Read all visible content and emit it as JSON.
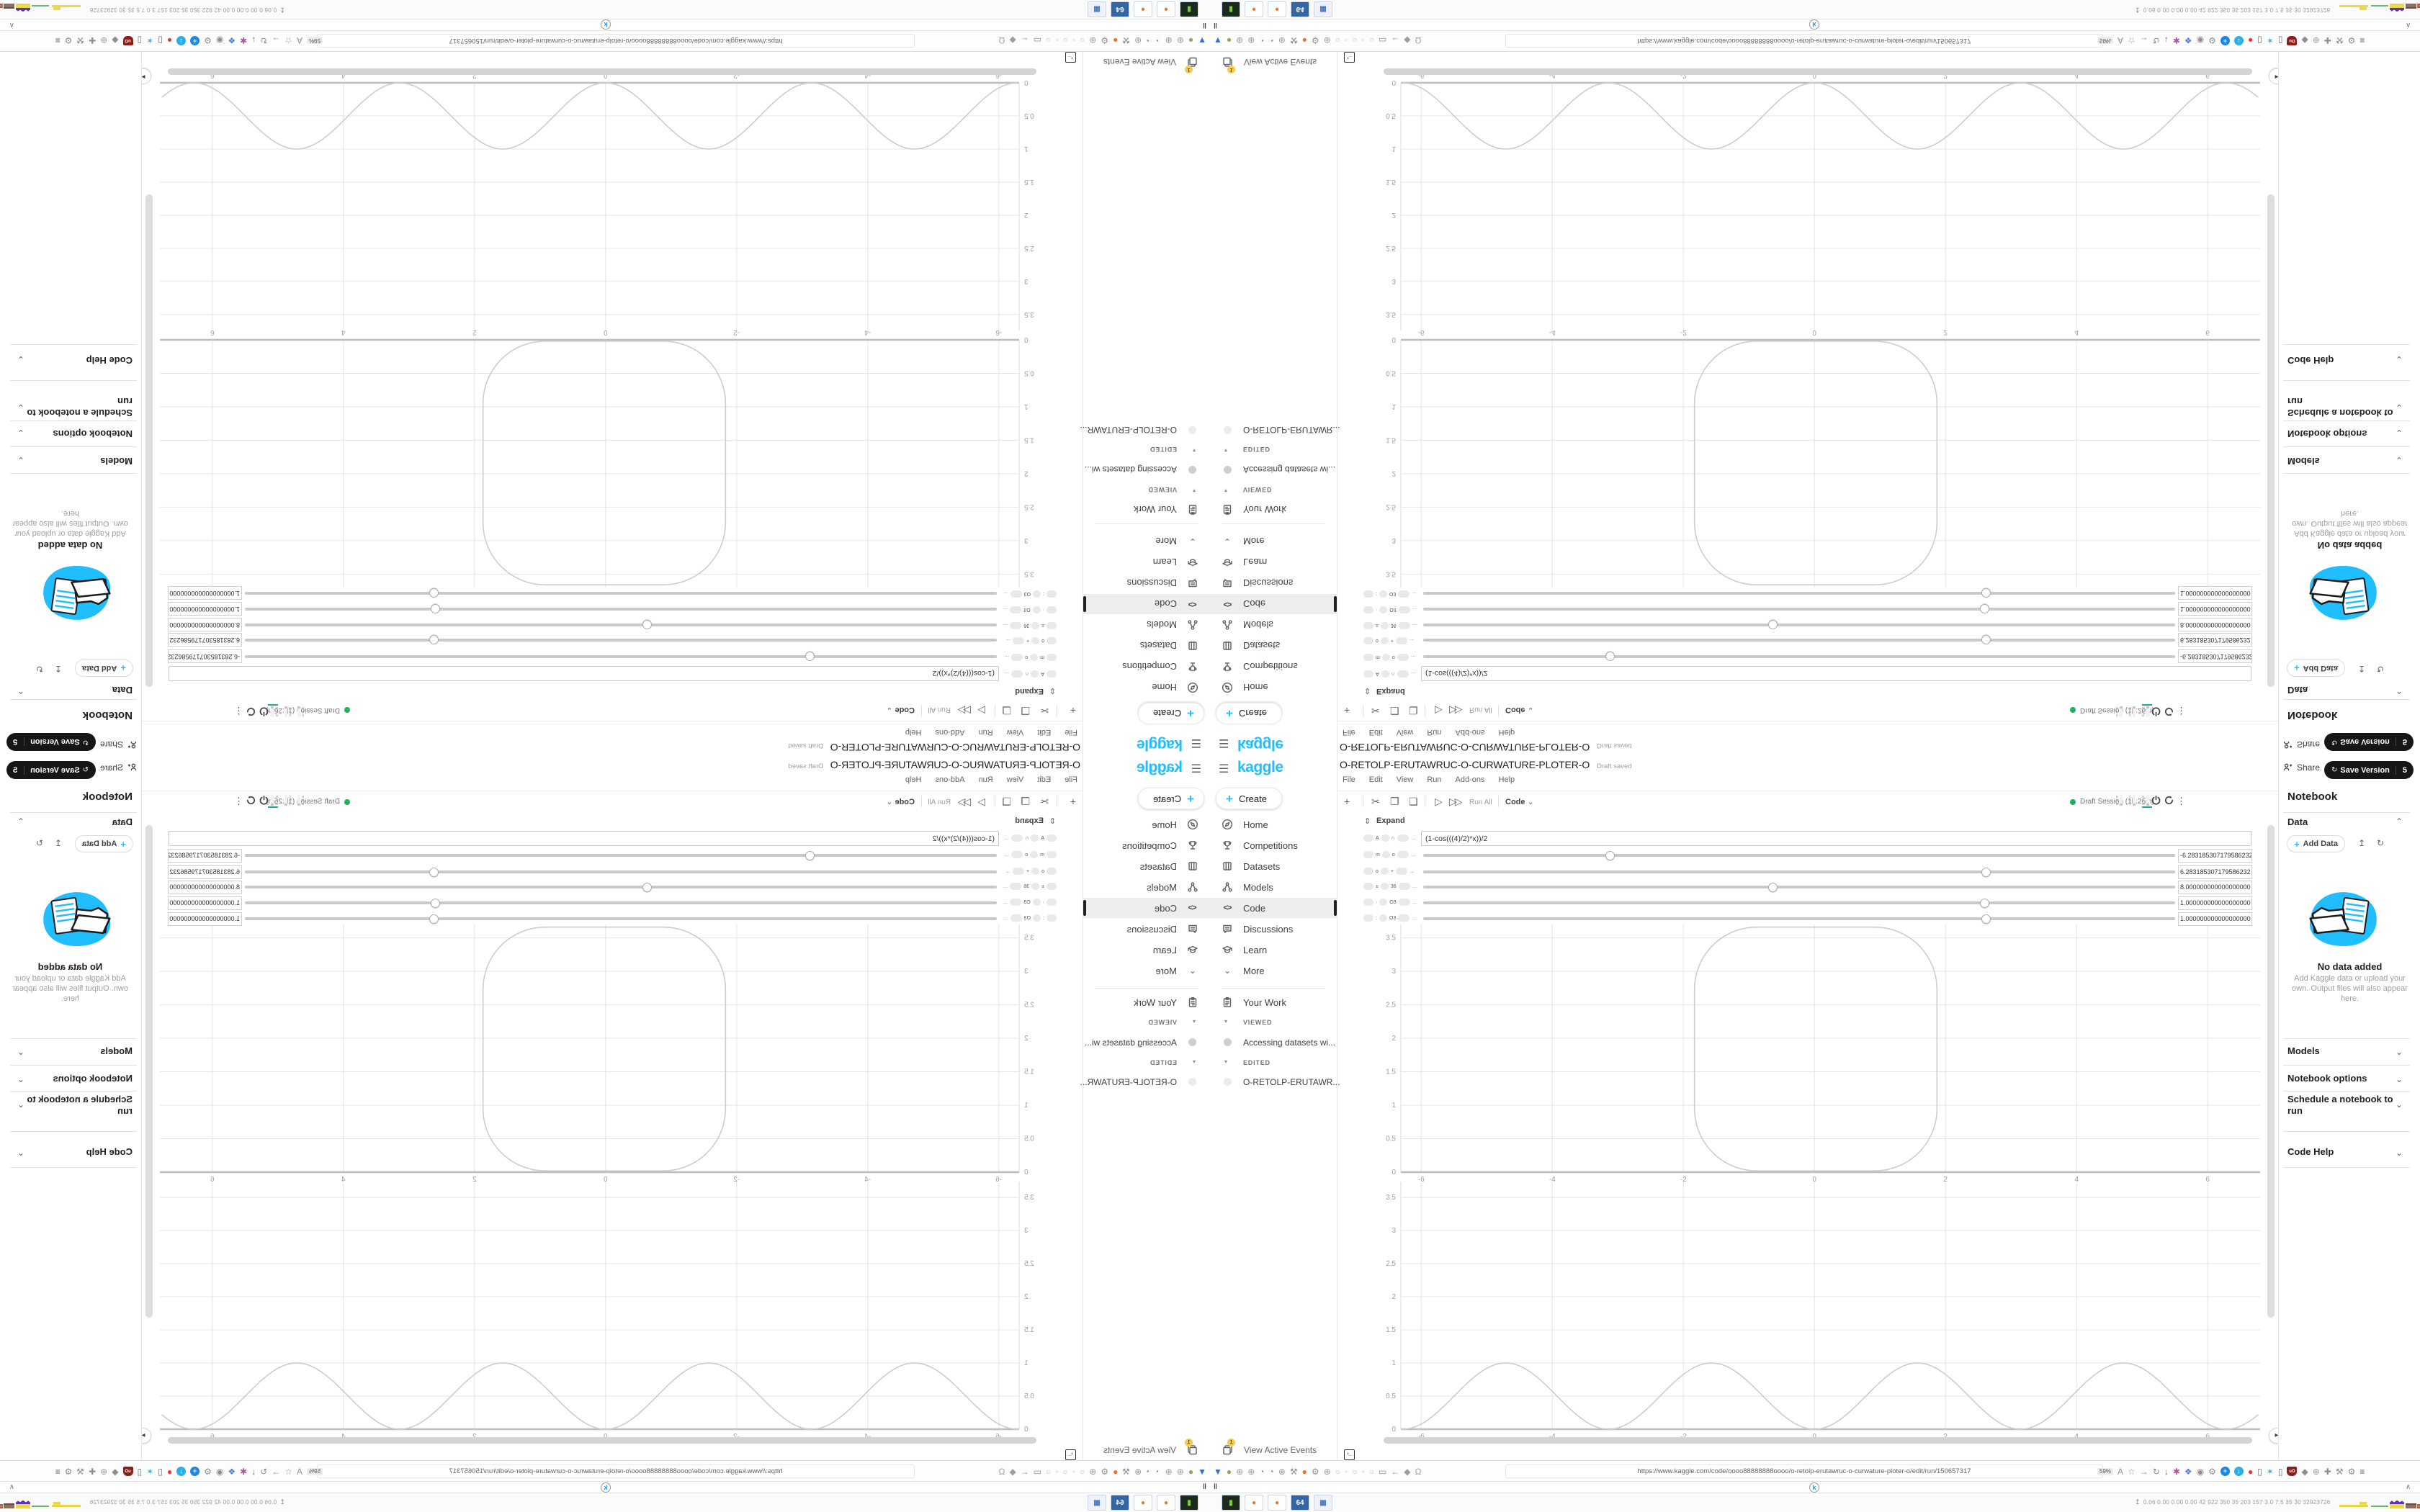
{
  "accent_color": "#20beff",
  "browser": {
    "url": "https://www.kaggle.com/code/oooo88888888oooo/o-retolp-erutawruc-o-curwature-ploter-o/edit/run/150657317",
    "zoom_badge": "59%",
    "favicon_letter": "k",
    "tab_left_glyph": "‖",
    "tab_right_glyph": "∧",
    "left_icons": [
      {
        "name": "filter-funnel-icon",
        "glyph": "▼",
        "color": "#2a6fdb"
      },
      {
        "name": "olive-dot-icon",
        "glyph": "●",
        "color": "#97a35c"
      },
      {
        "name": "globe-icon",
        "glyph": "⊕",
        "color": "#9a9a9a"
      },
      {
        "name": "globe-icon",
        "glyph": "⊕",
        "color": "#9a9a9a"
      },
      {
        "name": "gauge-icon",
        "glyph": "◔",
        "color": "#8f8f8f"
      },
      {
        "name": "gauge-icon",
        "glyph": "◔",
        "color": "#8f8f8f"
      },
      {
        "name": "globe-icon",
        "glyph": "⊕",
        "color": "#9a9a9a"
      },
      {
        "name": "wrench-icon",
        "glyph": "⚒",
        "color": "#8f8f8f"
      },
      {
        "name": "firefox-icon",
        "glyph": "●",
        "color": "#e8772e"
      },
      {
        "name": "gear-icon",
        "glyph": "⚙",
        "color": "#8f8f8f"
      },
      {
        "name": "globe-icon",
        "glyph": "⊕",
        "color": "#9a9a9a"
      },
      {
        "name": "dim-dot-icon",
        "glyph": "○",
        "color": "#c4c4c4"
      },
      {
        "name": "dim-dot-icon",
        "glyph": "◦",
        "color": "#c4c4c4"
      },
      {
        "name": "dim-dot-icon",
        "glyph": "○",
        "color": "#c4c4c4"
      },
      {
        "name": "dim-dot-icon",
        "glyph": "◦",
        "color": "#c4c4c4"
      },
      {
        "name": "dim-dot-icon",
        "glyph": "○",
        "color": "#c4c4c4"
      },
      {
        "name": "folder-icon",
        "glyph": "▭",
        "color": "#8f8f8f"
      },
      {
        "name": "back-arrow-icon",
        "glyph": "←",
        "color": "#8f8f8f"
      },
      {
        "name": "shield-icon",
        "glyph": "◆",
        "color": "#9f9f9f"
      },
      {
        "name": "lock-icon",
        "glyph": "Ω",
        "color": "#9f9f9f"
      }
    ],
    "right_icons": [
      {
        "name": "zoom-level-badge",
        "glyph": "59%",
        "color": "#555",
        "chip": true
      },
      {
        "name": "translate-icon",
        "glyph": "A",
        "color": "#8f8f8f"
      },
      {
        "name": "bookmark-star-icon",
        "glyph": "☆",
        "color": "#9a9a9a"
      },
      {
        "name": "forward-arrow-icon",
        "glyph": "→",
        "color": "#8f8f8f"
      },
      {
        "name": "reload-icon",
        "glyph": "↻",
        "color": "#8f8f8f"
      },
      {
        "name": "downloads-icon",
        "glyph": "↓",
        "color": "#6f6f6f"
      },
      {
        "name": "colorpicker-icon",
        "glyph": "✱",
        "color": "#b0569a"
      },
      {
        "name": "reader-icon",
        "glyph": "❖",
        "color": "#4a7fd4"
      },
      {
        "name": "circle-dot-icon",
        "glyph": "◉",
        "color": "#8f8f8f"
      },
      {
        "name": "gear-icon",
        "glyph": "⚙",
        "color": "#8f8f8f"
      },
      {
        "name": "add-extension-icon",
        "glyph": "+",
        "color": "#fff",
        "bg": "#1e88e5"
      },
      {
        "name": "down-extension-icon",
        "glyph": "↓",
        "color": "#fff",
        "bg": "#29b0e8"
      },
      {
        "name": "record-dot-icon",
        "glyph": "●",
        "color": "#e53935"
      },
      {
        "name": "trash-icon",
        "glyph": "▯",
        "color": "#6f6f6f"
      },
      {
        "name": "share-nodes-icon",
        "glyph": "✶",
        "color": "#49a8d8"
      },
      {
        "name": "trash-box-icon",
        "glyph": "▯",
        "color": "#6f6f6f"
      },
      {
        "name": "ublock-shield-icon",
        "glyph": "uO",
        "color": "#fff",
        "shield": "#8c1d18"
      },
      {
        "name": "shield-icon",
        "glyph": "◆",
        "color": "#8f8f8f"
      },
      {
        "name": "globe-icon",
        "glyph": "⊕",
        "color": "#9a9a9a"
      },
      {
        "name": "puzzle-icon",
        "glyph": "✚",
        "color": "#8f8f8f"
      },
      {
        "name": "wrench-icon",
        "glyph": "⚒",
        "color": "#8f8f8f"
      },
      {
        "name": "gear-icon",
        "glyph": "⚙",
        "color": "#8f8f8f"
      },
      {
        "name": "menu-icon",
        "glyph": "≡",
        "color": "#5f5f5f"
      }
    ]
  },
  "taskbar": {
    "launchers": [
      {
        "name": "terminal-app-icon",
        "glyph": "▮",
        "color": "#7ec636",
        "bg": "#1b2b1b"
      },
      {
        "name": "firefox-app-icon",
        "glyph": "●",
        "color": "#e8772e",
        "bg": "#ffffff"
      },
      {
        "name": "firefox-app-icon",
        "glyph": "●",
        "color": "#e8772e",
        "bg": "#ffffff"
      },
      {
        "name": "floppy-64-app-icon",
        "glyph": "64",
        "color": "#ffffff",
        "bg": "#3465a4"
      },
      {
        "name": "image-viewer-app-icon",
        "glyph": "▦",
        "color": "#4a78c2",
        "bg": "#eef2f8"
      }
    ],
    "tray_arrow": "↥",
    "tray_stats": "0.06 0.00 0.00 0.00  42  922 350  35  203 157  3.0  7.5  35  30 32923726"
  },
  "sidebar": {
    "logo": "kaggle",
    "create_label": "Create",
    "items": [
      {
        "label": "Home",
        "icon": "home",
        "active": false
      },
      {
        "label": "Competitions",
        "icon": "trophy",
        "active": false
      },
      {
        "label": "Datasets",
        "icon": "datasets",
        "active": false
      },
      {
        "label": "Models",
        "icon": "models",
        "active": false
      },
      {
        "label": "Code",
        "icon": "code",
        "active": true
      },
      {
        "label": "Discussions",
        "icon": "discussions",
        "active": false
      },
      {
        "label": "Learn",
        "icon": "learn",
        "active": false
      },
      {
        "label": "More",
        "icon": "chevron-down",
        "active": false
      }
    ],
    "your_work": "Your Work",
    "viewed_header": "VIEWED",
    "viewed_item": "Accessing datasets wi...",
    "edited_header": "EDITED",
    "edited_item": "O-RETOLP-ERUTAWR...",
    "view_active_events": "View Active Events",
    "events_badge": "1"
  },
  "editor": {
    "title": "O-RETOLP-ERUTAWRUC-O-CURWATURE-PLOTER-O",
    "status": "Draft saved",
    "menus": [
      "File",
      "Edit",
      "View",
      "Run",
      "Add-ons",
      "Help"
    ],
    "toolbar": {
      "add_label": "+",
      "run_all_label": "Run All",
      "language_label": "Code",
      "session_status": "Draft Session (1h:26m)",
      "meters": [
        "HDD",
        "CPU",
        "RAM"
      ]
    },
    "expand_label": "Expand"
  },
  "form": {
    "formula_value": "(1-cos(((4)/2)*x))/2",
    "label_fragments": [
      [
        "A",
        "∩"
      ],
      [
        "m",
        "o"
      ],
      [
        "o",
        "+"
      ],
      [
        "±",
        "36"
      ],
      [
        "·",
        "O3"
      ],
      [
        ":",
        "O3"
      ]
    ],
    "sliders": [
      {
        "fraction": 0.249,
        "value": "-6.283185307179586232"
      },
      {
        "fraction": 0.749,
        "value": "6.283185307179586232"
      },
      {
        "fraction": 0.465,
        "value": "8.000000000000000000"
      },
      {
        "fraction": 0.747,
        "value": "1.000000000000000000"
      },
      {
        "fraction": 0.749,
        "value": "1.000000000000000000"
      }
    ]
  },
  "panel": {
    "share_label": "Share",
    "save_version_label": "Save Version",
    "save_count": "5",
    "heading": "Notebook",
    "data_section": "Data",
    "add_data_label": "Add Data",
    "no_data_title": "No data added",
    "no_data_hint": "Add Kaggle data or upload your own. Output files will also appear here.",
    "sections": [
      "Models",
      "Notebook options",
      "Schedule a notebook to run",
      "Code Help"
    ]
  },
  "chart_data": [
    {
      "type": "line",
      "name": "traced-curve",
      "title": "",
      "description": "Closed plane curve generated from the curvature function - a rounded square",
      "xlabel": "",
      "ylabel": "",
      "xlim": [
        -6.31,
        6.8
      ],
      "ylim": [
        0,
        3.7
      ],
      "x_ticks": [
        -6,
        -4,
        -2,
        0,
        2,
        4,
        6
      ],
      "y_ticks": [
        0,
        0.5,
        1,
        1.5,
        2,
        2.5,
        3,
        3.5
      ],
      "grid": true,
      "legend": false,
      "shape": {
        "kind": "rounded_rect",
        "x_range": [
          -1.83,
          1.87
        ],
        "y_range": [
          0.02,
          3.66
        ],
        "corner_radius": 0.95
      },
      "px": {
        "x0": 265,
        "x1": 1458,
        "y0": 578,
        "y1": 234
      }
    },
    {
      "type": "line",
      "name": "curvature-function",
      "title": "",
      "description": "Curvature k(x) = (1-cos(((4)/2)*x))/2 = sin^2(x)",
      "xlabel": "",
      "ylabel": "",
      "xlim": [
        -6.31,
        6.8
      ],
      "ylim": [
        0,
        3.74
      ],
      "x_ticks": [
        -6,
        -4,
        -2,
        0,
        2,
        4,
        6
      ],
      "y_ticks": [
        0,
        0.5,
        1,
        1.5,
        2,
        2.5,
        3,
        3.5
      ],
      "grid": true,
      "legend": false,
      "formula_js": "(1-Math.cos(2*x))/2",
      "key_points": {
        "maxima_x": [
          -4.712,
          -1.571,
          1.571,
          4.712
        ],
        "maxima_y": 1.0,
        "zeros_x": [
          -6.283,
          -3.142,
          0,
          3.142,
          6.283
        ]
      },
      "px": {
        "x0": 265,
        "x1": 1458,
        "y0": 935,
        "y1": 591
      }
    }
  ]
}
